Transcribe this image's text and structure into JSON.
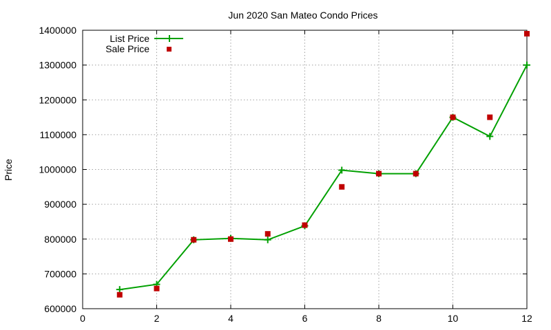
{
  "chart_data": {
    "type": "line",
    "title": "Jun 2020 San Mateo Condo Prices",
    "xlabel": "",
    "ylabel": "Price",
    "xlim": [
      0,
      12
    ],
    "ylim": [
      600000,
      1400000
    ],
    "x_ticks": [
      "0",
      "2",
      "4",
      "6",
      "8",
      "10",
      "12"
    ],
    "y_ticks": [
      "600000",
      "700000",
      "800000",
      "900000",
      "1000000",
      "1100000",
      "1200000",
      "1300000",
      "1400000"
    ],
    "grid": true,
    "legend_position": "top-left",
    "series": [
      {
        "name": "List Price",
        "style": "line-with-plus",
        "color": "#00a000",
        "x": [
          1,
          2,
          3,
          4,
          5,
          6,
          7,
          8,
          9,
          10,
          11,
          12
        ],
        "y": [
          655000,
          670000,
          798000,
          802000,
          798000,
          838000,
          998000,
          988000,
          988000,
          1150000,
          1095000,
          1300000
        ]
      },
      {
        "name": "Sale Price",
        "style": "square-points",
        "color": "#c00000",
        "x": [
          1,
          2,
          3,
          4,
          5,
          6,
          7,
          8,
          9,
          10,
          11,
          12
        ],
        "y": [
          640000,
          658000,
          798000,
          800000,
          815000,
          840000,
          950000,
          988000,
          988000,
          1150000,
          1150000,
          1390000
        ]
      }
    ]
  }
}
